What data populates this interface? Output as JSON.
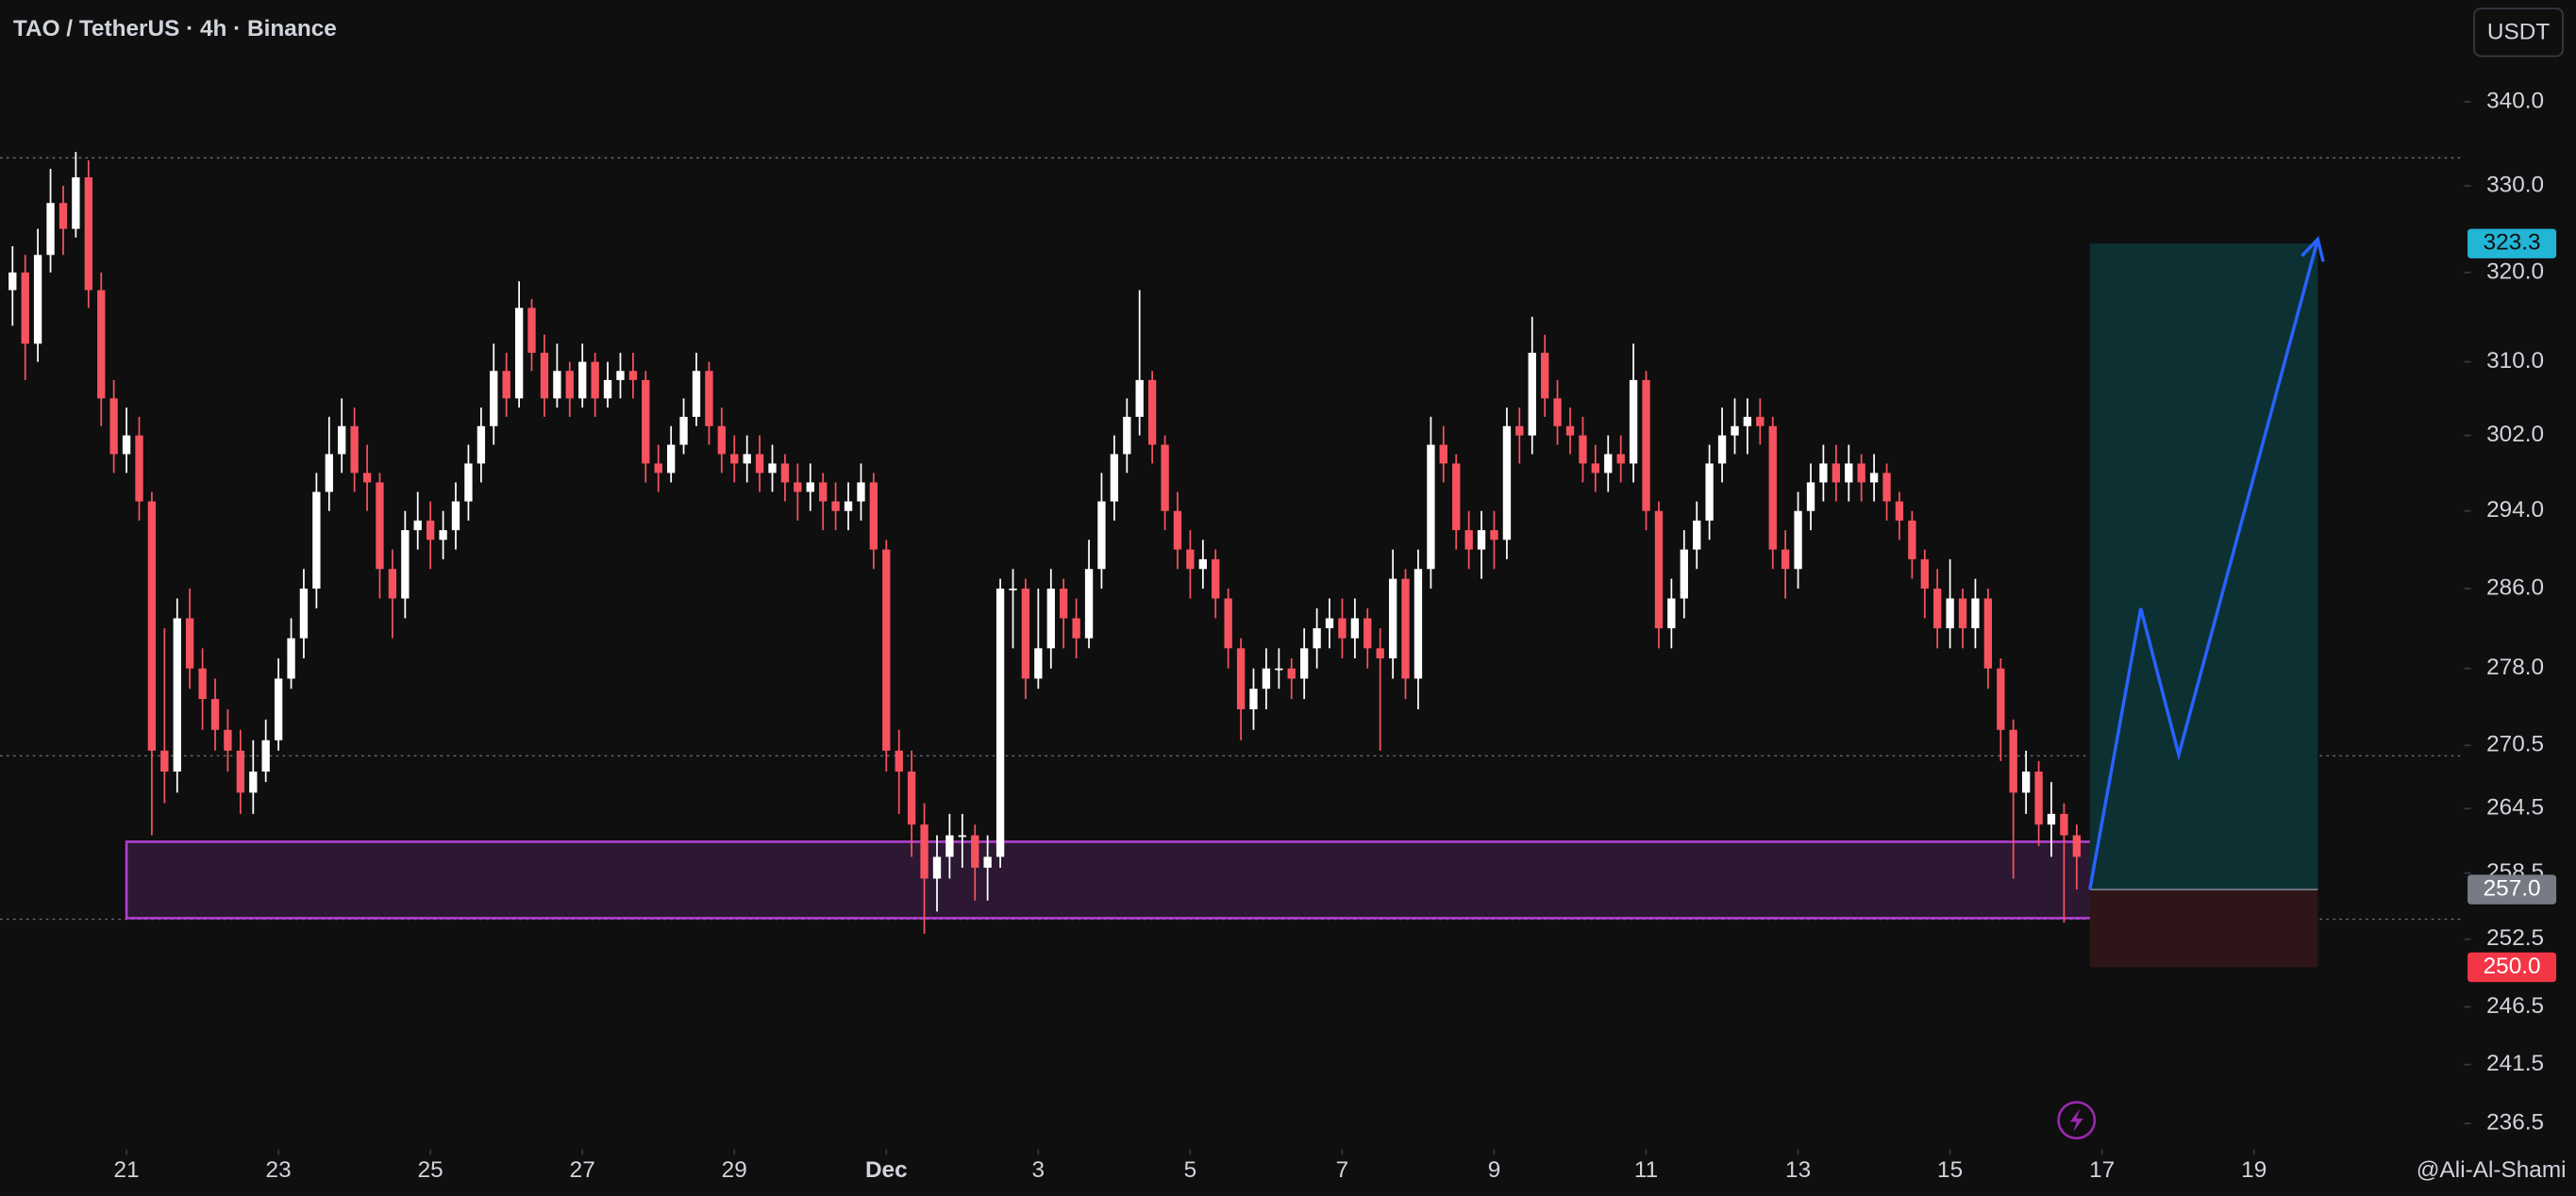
{
  "chart_data": {
    "type": "candlestick",
    "title": "TAO / TetherUS · 4h · Binance",
    "currency": "USDT",
    "watermark": "@Ali-Al-Shami",
    "log_scale": true,
    "up_color": "#ffffff",
    "down_color": "#f7525f",
    "x": [
      19.5,
      19.667,
      19.833,
      20,
      20.167,
      20.333,
      20.5,
      20.667,
      20.833,
      21,
      21.167,
      21.333,
      21.5,
      21.667,
      21.833,
      22,
      22.167,
      22.333,
      22.5,
      22.667,
      22.833,
      23,
      23.167,
      23.333,
      23.5,
      23.667,
      23.833,
      24,
      24.167,
      24.333,
      24.5,
      24.667,
      24.833,
      25,
      25.167,
      25.333,
      25.5,
      25.667,
      25.833,
      26,
      26.167,
      26.333,
      26.5,
      26.667,
      26.833,
      27,
      27.167,
      27.333,
      27.5,
      27.667,
      27.833,
      28,
      28.167,
      28.333,
      28.5,
      28.667,
      28.833,
      29,
      29.167,
      29.333,
      29.5,
      29.667,
      29.833,
      30,
      30.167,
      30.333,
      30.5,
      30.667,
      30.833,
      31,
      31.167,
      31.333,
      31.5,
      31.667,
      31.833,
      32,
      32.167,
      32.333,
      32.5,
      32.667,
      32.833,
      33,
      33.167,
      33.333,
      33.5,
      33.667,
      33.833,
      34,
      34.167,
      34.333,
      34.5,
      34.667,
      34.833,
      35,
      35.167,
      35.333,
      35.5,
      35.667,
      35.833,
      36,
      36.167,
      36.333,
      36.5,
      36.667,
      36.833,
      37,
      37.167,
      37.333,
      37.5,
      37.667,
      37.833,
      38,
      38.167,
      38.333,
      38.5,
      38.667,
      38.833,
      39,
      39.167,
      39.333,
      39.5,
      39.667,
      39.833,
      40,
      40.167,
      40.333,
      40.5,
      40.667,
      40.833,
      41,
      41.167,
      41.333,
      41.5,
      41.667,
      41.833,
      42,
      42.167,
      42.333,
      42.5,
      42.667,
      42.833,
      43,
      43.167,
      43.333,
      43.5,
      43.667,
      43.833,
      44,
      44.167,
      44.333,
      44.5,
      44.667,
      44.833,
      45,
      45.167,
      45.333,
      45.5,
      45.667,
      45.833,
      46,
      46.167,
      46.333,
      46.5,
      46.667
    ],
    "open": [
      318,
      320,
      312,
      322,
      328,
      325,
      331,
      318,
      306,
      300,
      302,
      295,
      270,
      268,
      283,
      278,
      275,
      272,
      270,
      266,
      268,
      271,
      277,
      281,
      286,
      296,
      300,
      303,
      298,
      297,
      288,
      285,
      292,
      293,
      291,
      292,
      295,
      299,
      303,
      309,
      306,
      316,
      311,
      306,
      309,
      306,
      310,
      306,
      308,
      309,
      308,
      299,
      298,
      301,
      304,
      309,
      303,
      300,
      299,
      300,
      298,
      299,
      297,
      296,
      297,
      295,
      294,
      295,
      297,
      290,
      270,
      268,
      263,
      258,
      260,
      262,
      262,
      259,
      260,
      286,
      286,
      277,
      280,
      286,
      283,
      281,
      288,
      295,
      300,
      304,
      308,
      301,
      294,
      290,
      288,
      289,
      285,
      280,
      274,
      276,
      278,
      278,
      277,
      280,
      282,
      283,
      281,
      283,
      280,
      279,
      287,
      277,
      288,
      301,
      299,
      292,
      290,
      292,
      291,
      303,
      302,
      311,
      306,
      303,
      302,
      299,
      298,
      300,
      299,
      308,
      294,
      282,
      285,
      290,
      293,
      299,
      302,
      303,
      304,
      303,
      290,
      288,
      294,
      297,
      299,
      297,
      299,
      297,
      298,
      295,
      293,
      289,
      286,
      282,
      285,
      282,
      285,
      278,
      272,
      266,
      268,
      263,
      264,
      262
    ],
    "high": [
      323,
      322,
      325,
      332,
      330,
      334,
      333,
      320,
      308,
      305,
      304,
      296,
      282,
      285,
      286,
      280,
      277,
      274,
      272,
      271,
      273,
      279,
      283,
      288,
      298,
      304,
      306,
      305,
      301,
      298,
      290,
      294,
      296,
      295,
      294,
      297,
      301,
      305,
      312,
      311,
      319,
      317,
      313,
      312,
      310,
      312,
      311,
      310,
      311,
      311,
      309,
      301,
      303,
      306,
      311,
      310,
      305,
      302,
      302,
      302,
      301,
      300,
      299,
      299,
      298,
      297,
      297,
      299,
      298,
      291,
      272,
      270,
      265,
      262,
      264,
      264,
      263,
      262,
      287,
      288,
      287,
      286,
      288,
      287,
      285,
      291,
      298,
      302,
      306,
      318,
      309,
      302,
      296,
      292,
      291,
      290,
      286,
      281,
      278,
      280,
      280,
      279,
      282,
      284,
      285,
      285,
      285,
      284,
      282,
      290,
      288,
      290,
      304,
      303,
      300,
      294,
      294,
      294,
      305,
      305,
      315,
      313,
      308,
      305,
      304,
      301,
      302,
      302,
      312,
      309,
      295,
      287,
      292,
      295,
      301,
      305,
      306,
      306,
      306,
      304,
      292,
      296,
      299,
      301,
      301,
      301,
      300,
      300,
      299,
      296,
      294,
      290,
      288,
      289,
      286,
      287,
      286,
      279,
      273,
      270,
      269,
      267,
      265,
      263
    ],
    "low": [
      314,
      308,
      310,
      320,
      322,
      324,
      316,
      303,
      298,
      298,
      293,
      262,
      265,
      266,
      276,
      272,
      270,
      268,
      264,
      264,
      267,
      270,
      276,
      279,
      284,
      294,
      298,
      296,
      294,
      285,
      281,
      283,
      290,
      288,
      289,
      290,
      293,
      297,
      301,
      304,
      305,
      309,
      304,
      305,
      304,
      305,
      304,
      305,
      306,
      306,
      297,
      296,
      297,
      300,
      303,
      301,
      298,
      297,
      297,
      296,
      296,
      295,
      293,
      294,
      292,
      292,
      292,
      293,
      288,
      268,
      264,
      260,
      253,
      255,
      258,
      259,
      256,
      256,
      259,
      280,
      275,
      276,
      278,
      280,
      279,
      280,
      286,
      293,
      298,
      302,
      299,
      292,
      288,
      285,
      286,
      283,
      278,
      271,
      272,
      274,
      276,
      275,
      275,
      278,
      280,
      279,
      279,
      278,
      270,
      277,
      275,
      274,
      286,
      297,
      290,
      288,
      287,
      288,
      289,
      299,
      300,
      304,
      301,
      300,
      297,
      296,
      296,
      297,
      297,
      292,
      280,
      280,
      283,
      288,
      291,
      297,
      300,
      300,
      301,
      288,
      285,
      286,
      292,
      295,
      295,
      295,
      295,
      295,
      293,
      291,
      287,
      283,
      280,
      280,
      280,
      280,
      276,
      269,
      258,
      264,
      261,
      260,
      254,
      257
    ],
    "close": [
      320,
      312,
      322,
      328,
      325,
      331,
      318,
      306,
      300,
      302,
      295,
      270,
      268,
      283,
      278,
      275,
      272,
      270,
      266,
      268,
      271,
      277,
      281,
      286,
      296,
      300,
      303,
      298,
      297,
      288,
      285,
      292,
      293,
      291,
      292,
      295,
      299,
      303,
      309,
      306,
      316,
      311,
      306,
      309,
      306,
      310,
      306,
      308,
      309,
      308,
      299,
      298,
      301,
      304,
      309,
      303,
      300,
      299,
      300,
      298,
      299,
      297,
      296,
      297,
      295,
      294,
      295,
      297,
      290,
      270,
      268,
      263,
      258,
      260,
      262,
      262,
      259,
      260,
      286,
      286,
      277,
      280,
      286,
      283,
      281,
      288,
      295,
      300,
      304,
      308,
      301,
      294,
      290,
      288,
      289,
      285,
      280,
      274,
      276,
      278,
      278,
      277,
      280,
      282,
      283,
      281,
      283,
      280,
      279,
      287,
      277,
      288,
      301,
      299,
      292,
      290,
      292,
      291,
      303,
      302,
      311,
      306,
      303,
      302,
      299,
      298,
      300,
      299,
      308,
      294,
      282,
      285,
      290,
      293,
      299,
      302,
      303,
      304,
      303,
      290,
      288,
      294,
      297,
      299,
      297,
      299,
      297,
      298,
      295,
      293,
      289,
      286,
      282,
      285,
      282,
      285,
      278,
      272,
      266,
      268,
      263,
      264,
      262,
      260
    ],
    "xlim": [
      19.335,
      51.768
    ],
    "xticks": [
      21,
      23,
      25,
      27,
      29,
      {
        "value": 31,
        "label": "Dec"
      },
      {
        "value": 33,
        "label": "3"
      },
      {
        "value": 35,
        "label": "5"
      },
      {
        "value": 37,
        "label": "7"
      },
      {
        "value": 39,
        "label": "9"
      },
      {
        "value": 41,
        "label": "11"
      },
      {
        "value": 43,
        "label": "13"
      },
      {
        "value": 45,
        "label": "15"
      },
      {
        "value": 47,
        "label": "17"
      },
      {
        "value": 49,
        "label": "19"
      }
    ],
    "ylim": [
      234.3,
      352.5
    ],
    "yticks": [
      {
        "value": 340,
        "label": "340.0"
      },
      {
        "value": 330,
        "label": "330.0"
      },
      {
        "value": 320,
        "label": "320.0"
      },
      {
        "value": 310,
        "label": "310.0"
      },
      {
        "value": 302,
        "label": "302.0"
      },
      {
        "value": 294,
        "label": "294.0"
      },
      {
        "value": 286,
        "label": "286.0"
      },
      {
        "value": 278,
        "label": "278.0"
      },
      270.5,
      264.5,
      258.5,
      252.5,
      246.5,
      241.5,
      236.5
    ],
    "levels": [
      333.3,
      269.5,
      254.3
    ],
    "zone": {
      "range": [
        254.4,
        261.4
      ],
      "x_range": [
        21,
        47.01
      ],
      "color": "#b040d0"
    },
    "position": {
      "x_range": [
        46.84,
        49.84
      ],
      "target": {
        "value": 323.3,
        "label": "323.3"
      },
      "entry": {
        "value": 257,
        "label": "257.0"
      },
      "stop": {
        "value": 250,
        "label": "250.0"
      }
    },
    "projection": {
      "color": "#2962ff",
      "x": [
        46.84,
        47.51,
        48.01,
        49.84
      ],
      "y": [
        257,
        284,
        269.6,
        323.8
      ]
    }
  }
}
